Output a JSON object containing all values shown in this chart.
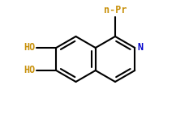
{
  "background_color": "#ffffff",
  "bond_color": "#000000",
  "label_color_nPr": "#c8900a",
  "label_color_N": "#0000cc",
  "label_color_HO": "#c8900a",
  "bond_width": 1.5,
  "nPr_label": "n-Pr",
  "N_label": "N",
  "HO_label": "HO"
}
